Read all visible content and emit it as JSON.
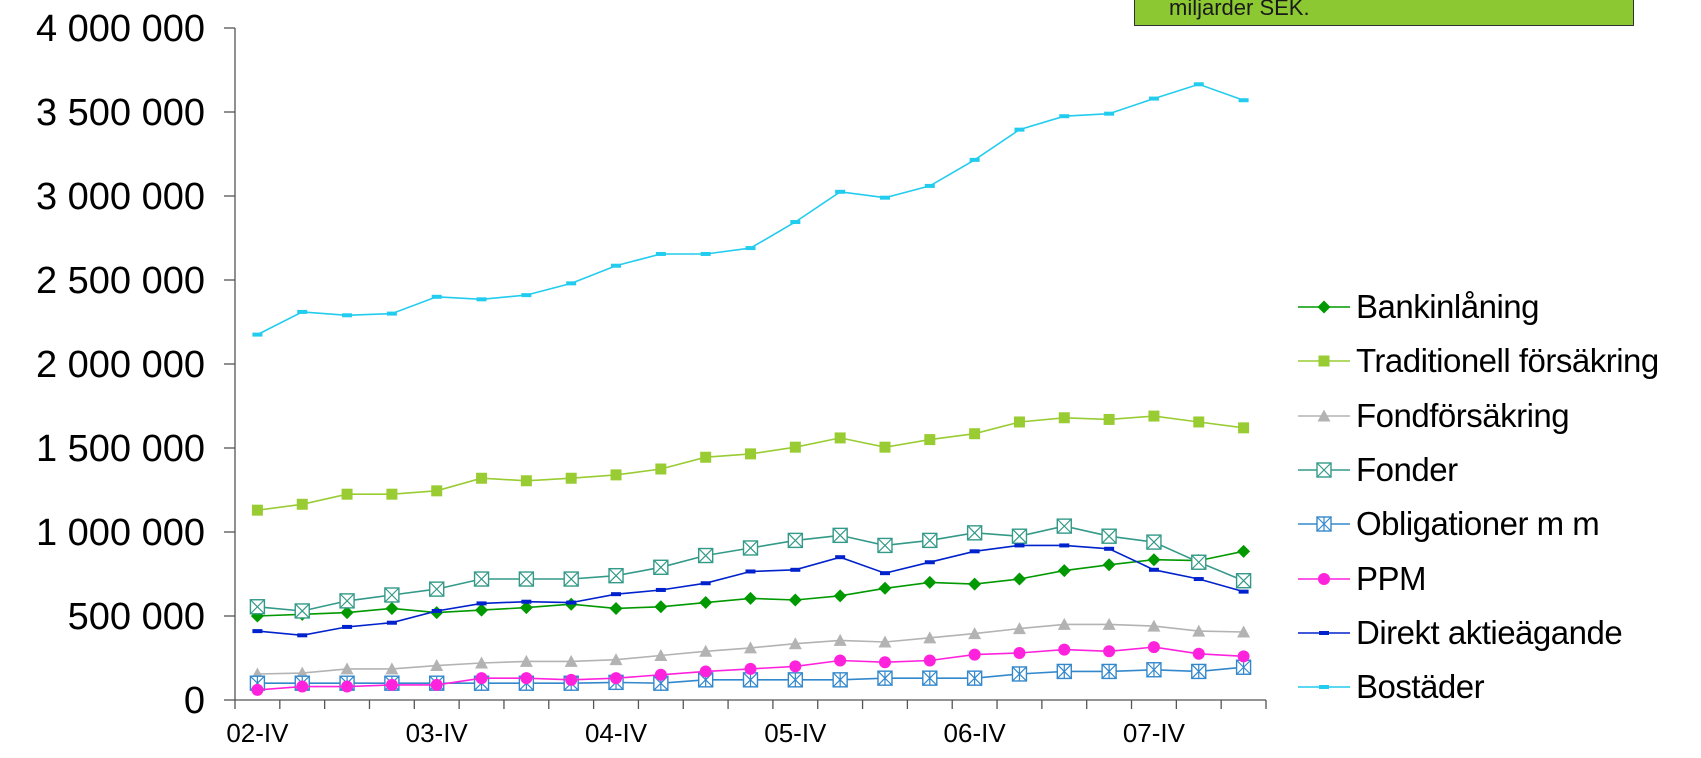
{
  "note": {
    "text": "miljarder SEK."
  },
  "chart_data": {
    "type": "line",
    "title": "",
    "xlabel": "",
    "ylabel": "",
    "ylim": [
      0,
      4000000
    ],
    "yticks": [
      0,
      500000,
      1000000,
      1500000,
      2000000,
      2500000,
      3000000,
      3500000,
      4000000
    ],
    "ytick_labels": [
      "0",
      "500 000",
      "1 000 000",
      "1 500 000",
      "2 000 000",
      "2 500 000",
      "3 000 000",
      "3 500 000",
      "4 000 000"
    ],
    "x_labels": [
      "02-IV",
      "03-IV",
      "04-IV",
      "05-IV",
      "06-IV",
      "07-IV"
    ],
    "x_label_indices": [
      0,
      4,
      8,
      12,
      16,
      20
    ],
    "n_points": 23,
    "grid": false,
    "legend_position": "right",
    "series": [
      {
        "name": "Bankinlåning",
        "color": "#009900",
        "marker": "diamond",
        "values": [
          500000,
          510000,
          520000,
          545000,
          520000,
          535000,
          550000,
          570000,
          545000,
          555000,
          580000,
          605000,
          595000,
          620000,
          665000,
          700000,
          690000,
          720000,
          770000,
          805000,
          835000,
          830000,
          885000
        ]
      },
      {
        "name": "Traditionell försäkring",
        "color": "#99cc33",
        "marker": "square",
        "values": [
          1130000,
          1165000,
          1225000,
          1225000,
          1245000,
          1320000,
          1305000,
          1320000,
          1340000,
          1375000,
          1445000,
          1465000,
          1505000,
          1560000,
          1505000,
          1550000,
          1585000,
          1655000,
          1680000,
          1670000,
          1690000,
          1655000,
          1620000
        ]
      },
      {
        "name": "Fondförsäkring",
        "color": "#b3b3b3",
        "marker": "triangle",
        "values": [
          155000,
          160000,
          185000,
          185000,
          205000,
          220000,
          230000,
          230000,
          240000,
          265000,
          290000,
          310000,
          335000,
          355000,
          345000,
          370000,
          395000,
          425000,
          450000,
          450000,
          440000,
          410000,
          405000
        ]
      },
      {
        "name": "Fonder",
        "color": "#339988",
        "marker": "square-x",
        "values": [
          555000,
          530000,
          590000,
          625000,
          660000,
          720000,
          720000,
          720000,
          740000,
          790000,
          860000,
          905000,
          950000,
          980000,
          920000,
          950000,
          995000,
          975000,
          1035000,
          975000,
          940000,
          820000,
          710000
        ]
      },
      {
        "name": "Obligationer m m",
        "color": "#3388cc",
        "marker": "square-star",
        "values": [
          100000,
          100000,
          100000,
          100000,
          100000,
          100000,
          100000,
          100000,
          105000,
          100000,
          120000,
          120000,
          120000,
          120000,
          130000,
          130000,
          130000,
          155000,
          170000,
          170000,
          180000,
          170000,
          195000
        ]
      },
      {
        "name": "PPM",
        "color": "#ff22dd",
        "marker": "circle",
        "values": [
          60000,
          80000,
          80000,
          90000,
          90000,
          130000,
          130000,
          120000,
          130000,
          150000,
          170000,
          185000,
          200000,
          235000,
          225000,
          235000,
          270000,
          280000,
          300000,
          290000,
          315000,
          275000,
          260000
        ]
      },
      {
        "name": "Direkt aktieägande",
        "color": "#0022cc",
        "marker": "dash",
        "values": [
          410000,
          385000,
          435000,
          460000,
          530000,
          575000,
          585000,
          580000,
          630000,
          655000,
          695000,
          765000,
          775000,
          850000,
          755000,
          820000,
          885000,
          920000,
          920000,
          900000,
          775000,
          720000,
          645000
        ]
      },
      {
        "name": "Bostäder",
        "color": "#22ccee",
        "marker": "dash",
        "values": [
          2175000,
          2310000,
          2290000,
          2300000,
          2400000,
          2385000,
          2410000,
          2480000,
          2585000,
          2655000,
          2655000,
          2690000,
          2845000,
          3025000,
          2990000,
          3060000,
          3215000,
          3395000,
          3475000,
          3490000,
          3580000,
          3665000,
          3570000
        ]
      }
    ]
  }
}
